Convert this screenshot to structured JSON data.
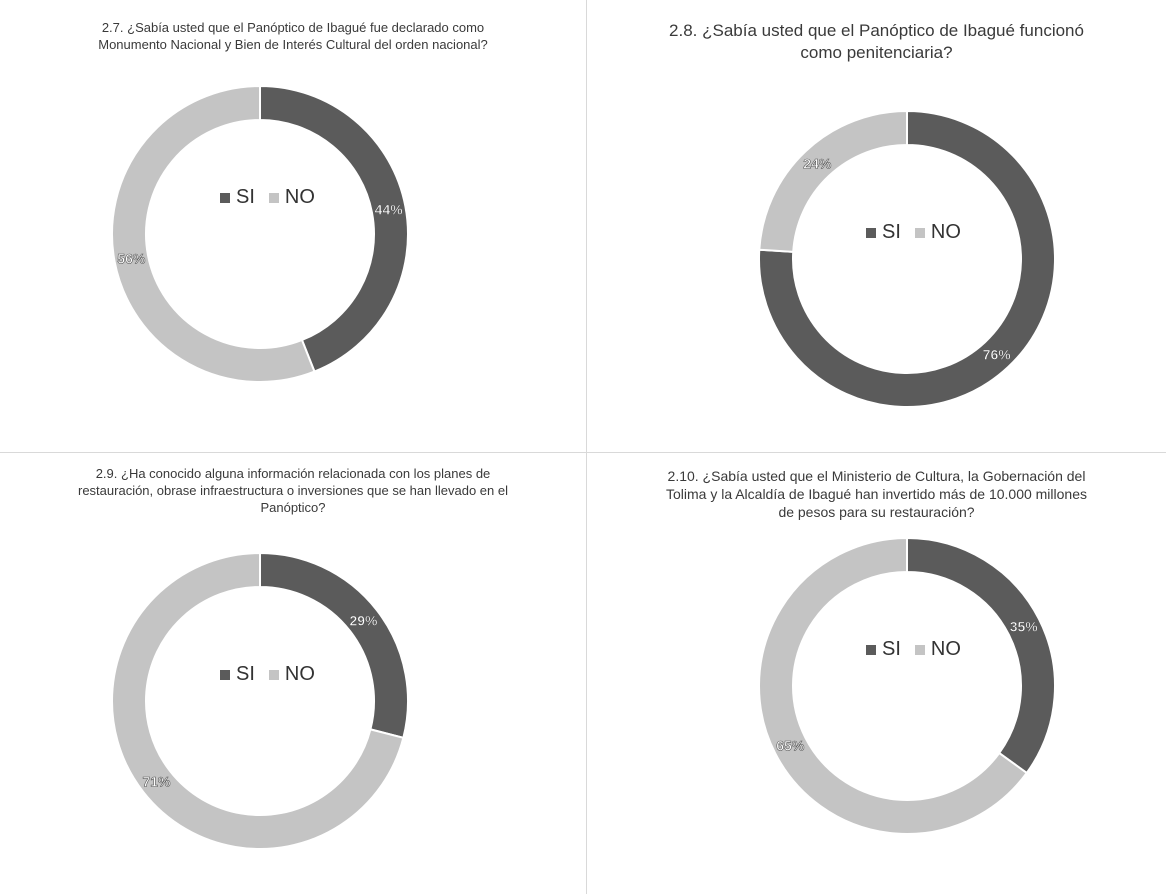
{
  "colors": {
    "si": "#5b5b5b",
    "no": "#c4c4c4",
    "separator": "#ffffff"
  },
  "chart_data": [
    {
      "type": "pie",
      "title_lines": [
        "2.7. ¿Sabía usted que el Panóptico de Ibagué fue declarado como",
        "Monumento Nacional y Bien de Interés Cultural del orden nacional?"
      ],
      "categories": [
        "SI",
        "NO"
      ],
      "values": [
        44,
        56
      ],
      "labels": [
        "44%",
        "56%"
      ],
      "legend": "center"
    },
    {
      "type": "pie",
      "title_lines": [
        "2.8. ¿Sabía usted que el Panóptico de Ibagué funcionó",
        "como penitenciaria?"
      ],
      "categories": [
        "SI",
        "NO"
      ],
      "values": [
        76,
        24
      ],
      "labels": [
        "76%",
        "24%"
      ],
      "legend": "center"
    },
    {
      "type": "pie",
      "title_lines": [
        "2.9. ¿Ha conocido alguna información relacionada con los planes de",
        "restauración, obrase infraestructura o inversiones que se han llevado en el",
        "Panóptico?"
      ],
      "categories": [
        "SI",
        "NO"
      ],
      "values": [
        29,
        71
      ],
      "labels": [
        "29%",
        "71%"
      ],
      "legend": "center"
    },
    {
      "type": "pie",
      "title_lines": [
        "2.10. ¿Sabía usted que el Ministerio de Cultura, la Gobernación del",
        "Tolima y la Alcaldía de Ibagué han invertido más de 10.000 millones",
        "de pesos para su restauración?"
      ],
      "categories": [
        "SI",
        "NO"
      ],
      "values": [
        35,
        65
      ],
      "labels": [
        "35%",
        "65%"
      ],
      "legend": "center"
    }
  ]
}
